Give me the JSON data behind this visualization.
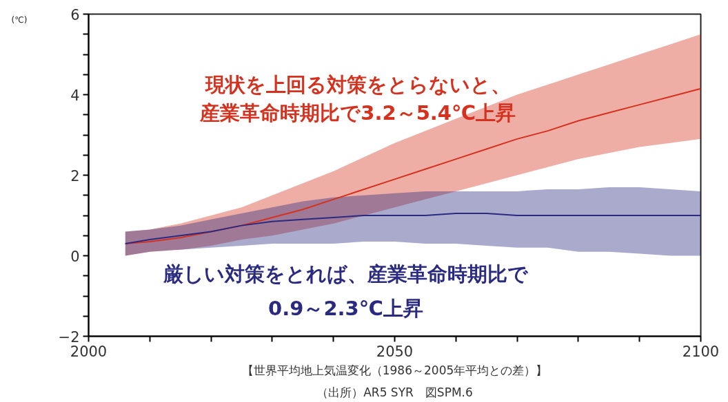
{
  "chart_data": {
    "type": "line",
    "ylabel": "(℃)",
    "x": [
      2006,
      2010,
      2015,
      2020,
      2025,
      2030,
      2035,
      2040,
      2045,
      2050,
      2055,
      2060,
      2065,
      2070,
      2075,
      2080,
      2085,
      2090,
      2095,
      2100
    ],
    "series": [
      {
        "color": "#d4321e",
        "values": [
          0.3,
          0.35,
          0.45,
          0.6,
          0.75,
          0.95,
          1.15,
          1.4,
          1.65,
          1.9,
          2.15,
          2.4,
          2.65,
          2.9,
          3.1,
          3.35,
          3.55,
          3.75,
          3.95,
          4.15
        ],
        "lower": [
          0.0,
          0.1,
          0.15,
          0.25,
          0.4,
          0.5,
          0.65,
          0.8,
          1.0,
          1.2,
          1.4,
          1.6,
          1.8,
          2.0,
          2.2,
          2.4,
          2.55,
          2.7,
          2.8,
          2.9
        ],
        "upper": [
          0.6,
          0.65,
          0.8,
          1.0,
          1.2,
          1.5,
          1.8,
          2.1,
          2.45,
          2.8,
          3.1,
          3.4,
          3.7,
          4.0,
          4.25,
          4.5,
          4.75,
          5.0,
          5.25,
          5.5
        ]
      },
      {
        "color": "#2a2a80",
        "values": [
          0.3,
          0.4,
          0.5,
          0.6,
          0.75,
          0.85,
          0.9,
          0.95,
          1.0,
          1.0,
          1.0,
          1.05,
          1.05,
          1.0,
          1.0,
          1.0,
          1.0,
          1.0,
          1.0,
          1.0
        ],
        "lower": [
          0.0,
          0.1,
          0.15,
          0.2,
          0.25,
          0.3,
          0.3,
          0.3,
          0.35,
          0.35,
          0.3,
          0.3,
          0.25,
          0.2,
          0.2,
          0.1,
          0.1,
          0.05,
          0.0,
          0.0
        ],
        "upper": [
          0.6,
          0.65,
          0.75,
          0.9,
          1.05,
          1.2,
          1.35,
          1.45,
          1.5,
          1.55,
          1.6,
          1.6,
          1.6,
          1.6,
          1.65,
          1.65,
          1.7,
          1.7,
          1.65,
          1.6
        ]
      }
    ],
    "xlim": [
      2000,
      2100
    ],
    "ylim": [
      -2,
      6
    ],
    "xticks": [
      2000,
      {
        "value": 2010,
        "label": null
      },
      {
        "value": 2020,
        "label": null
      },
      {
        "value": 2030,
        "label": null
      },
      {
        "value": 2040,
        "label": null
      },
      2050,
      {
        "value": 2060,
        "label": null
      },
      {
        "value": 2070,
        "label": null
      },
      {
        "value": 2080,
        "label": null
      },
      {
        "value": 2090,
        "label": null
      },
      2100
    ],
    "yticks": [
      -2,
      {
        "value": -1.5,
        "label": null
      },
      {
        "value": -1,
        "label": null
      },
      {
        "value": -0.5,
        "label": null
      },
      0,
      {
        "value": 0.5,
        "label": null
      },
      {
        "value": 1,
        "label": null
      },
      {
        "value": 1.5,
        "label": null
      },
      2,
      {
        "value": 2.5,
        "label": null
      },
      {
        "value": 3,
        "label": null
      },
      {
        "value": 3.5,
        "label": null
      },
      4,
      {
        "value": 4.5,
        "label": null
      },
      {
        "value": 5,
        "label": null
      },
      {
        "value": 5.5,
        "label": null
      },
      6
    ],
    "grid": false,
    "annotations": [
      "現状を上回る対策をとらないと、",
      "産業革命時期比で3.2～5.4℃上昇",
      "厳しい対策をとれば、産業革命時期比で",
      "0.9～2.3℃上昇",
      "【世界平均地上気温変化（1986～2005年平均との差）】",
      "（出所）AR5 SYR　図SPM.6"
    ]
  }
}
